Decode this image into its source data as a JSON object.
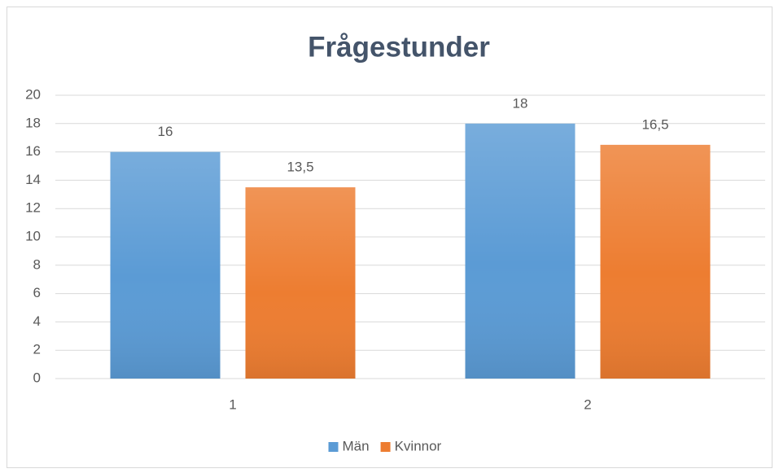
{
  "chart_data": {
    "type": "bar",
    "title": "Frågestunder",
    "categories": [
      "1",
      "2"
    ],
    "series": [
      {
        "name": "Män",
        "color": "#5b9bd5",
        "values": [
          16,
          18
        ],
        "value_labels": [
          "16",
          "18"
        ]
      },
      {
        "name": "Kvinnor",
        "color": "#ed7d31",
        "values": [
          13.5,
          16.5
        ],
        "value_labels": [
          "13,5",
          "16,5"
        ]
      }
    ],
    "ylim": [
      0,
      20
    ],
    "yticks": [
      0,
      2,
      4,
      6,
      8,
      10,
      12,
      14,
      16,
      18,
      20
    ],
    "grid": true,
    "legend": "bottom"
  }
}
